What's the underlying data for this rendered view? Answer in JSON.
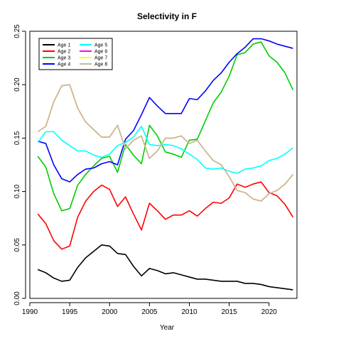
{
  "chart_data": {
    "type": "line",
    "title": "Selectivity in F",
    "xlabel": "Year",
    "ylabel": "",
    "xlim": [
      1990,
      2023.5
    ],
    "ylim": [
      0,
      0.25
    ],
    "xticks": [
      1990,
      1995,
      2000,
      2005,
      2010,
      2015,
      2020
    ],
    "yticks": [
      0.0,
      0.05,
      0.1,
      0.15,
      0.2,
      0.25
    ],
    "ytick_labels": [
      "0.00",
      "0.05",
      "0.10",
      "0.15",
      "0.20",
      "0.25"
    ],
    "legend_position": "top-left",
    "x": [
      1991,
      1992,
      1993,
      1994,
      1995,
      1996,
      1997,
      1998,
      1999,
      2000,
      2001,
      2002,
      2003,
      2004,
      2005,
      2006,
      2007,
      2008,
      2009,
      2010,
      2011,
      2012,
      2013,
      2014,
      2015,
      2016,
      2017,
      2018,
      2019,
      2020,
      2021,
      2022,
      2023
    ],
    "series": [
      {
        "name": "Age 1",
        "color": "#000000",
        "values": [
          0.027,
          0.024,
          0.019,
          0.016,
          0.017,
          0.029,
          0.038,
          0.044,
          0.05,
          0.049,
          0.042,
          0.041,
          0.03,
          0.021,
          0.028,
          0.026,
          0.023,
          0.024,
          0.022,
          0.02,
          0.018,
          0.018,
          0.017,
          0.016,
          0.016,
          0.016,
          0.014,
          0.014,
          0.013,
          0.011,
          0.01,
          0.009,
          0.008
        ]
      },
      {
        "name": "Age 2",
        "color": "#ff0000",
        "values": [
          0.079,
          0.07,
          0.054,
          0.046,
          0.049,
          0.076,
          0.091,
          0.1,
          0.106,
          0.102,
          0.086,
          0.095,
          0.079,
          0.064,
          0.089,
          0.082,
          0.074,
          0.078,
          0.078,
          0.082,
          0.077,
          0.084,
          0.09,
          0.089,
          0.094,
          0.107,
          0.104,
          0.107,
          0.109,
          0.099,
          0.096,
          0.088,
          0.076
        ]
      },
      {
        "name": "Age 3",
        "color": "#00cd00",
        "values": [
          0.133,
          0.123,
          0.098,
          0.082,
          0.084,
          0.106,
          0.116,
          0.124,
          0.131,
          0.133,
          0.118,
          0.144,
          0.134,
          0.126,
          0.162,
          0.152,
          0.137,
          0.135,
          0.132,
          0.148,
          0.149,
          0.166,
          0.183,
          0.193,
          0.208,
          0.228,
          0.23,
          0.238,
          0.24,
          0.227,
          0.221,
          0.211,
          0.195
        ]
      },
      {
        "name": "Age 4",
        "color": "#0000ff",
        "values": [
          0.147,
          0.145,
          0.125,
          0.112,
          0.109,
          0.116,
          0.121,
          0.122,
          0.126,
          0.128,
          0.125,
          0.149,
          0.157,
          0.172,
          0.188,
          0.18,
          0.173,
          0.173,
          0.173,
          0.187,
          0.186,
          0.194,
          0.204,
          0.211,
          0.221,
          0.229,
          0.235,
          0.243,
          0.243,
          0.241,
          0.238,
          0.236,
          0.234
        ]
      },
      {
        "name": "Age 5",
        "color": "#00ffff",
        "values": [
          0.146,
          0.156,
          0.156,
          0.148,
          0.143,
          0.138,
          0.138,
          0.134,
          0.132,
          0.135,
          0.143,
          0.146,
          0.151,
          0.161,
          0.144,
          0.143,
          0.144,
          0.143,
          0.14,
          0.135,
          0.13,
          0.122,
          0.121,
          0.122,
          0.119,
          0.117,
          0.121,
          0.122,
          0.124,
          0.129,
          0.131,
          0.135,
          0.141
        ]
      },
      {
        "name": "Age 6",
        "color": "#ff00ff",
        "values": [
          0.156,
          0.161,
          0.184,
          0.199,
          0.2,
          0.178,
          0.165,
          0.158,
          0.151,
          0.151,
          0.162,
          0.14,
          0.148,
          0.152,
          0.131,
          0.138,
          0.15,
          0.15,
          0.152,
          0.145,
          0.148,
          0.138,
          0.129,
          0.125,
          0.114,
          0.101,
          0.099,
          0.093,
          0.091,
          0.098,
          0.101,
          0.107,
          0.116
        ]
      },
      {
        "name": "Age 7",
        "color": "#ffff00",
        "values": [
          0.156,
          0.161,
          0.184,
          0.199,
          0.2,
          0.178,
          0.165,
          0.158,
          0.151,
          0.151,
          0.162,
          0.14,
          0.148,
          0.152,
          0.131,
          0.138,
          0.15,
          0.15,
          0.152,
          0.145,
          0.148,
          0.138,
          0.129,
          0.125,
          0.114,
          0.101,
          0.099,
          0.093,
          0.091,
          0.098,
          0.101,
          0.107,
          0.116
        ]
      },
      {
        "name": "Age 8",
        "color": "#c8b89c",
        "values": [
          0.156,
          0.161,
          0.184,
          0.199,
          0.2,
          0.178,
          0.165,
          0.158,
          0.151,
          0.151,
          0.162,
          0.14,
          0.148,
          0.152,
          0.131,
          0.138,
          0.15,
          0.15,
          0.152,
          0.145,
          0.148,
          0.138,
          0.129,
          0.125,
          0.114,
          0.101,
          0.099,
          0.093,
          0.091,
          0.098,
          0.101,
          0.107,
          0.116
        ]
      }
    ]
  }
}
